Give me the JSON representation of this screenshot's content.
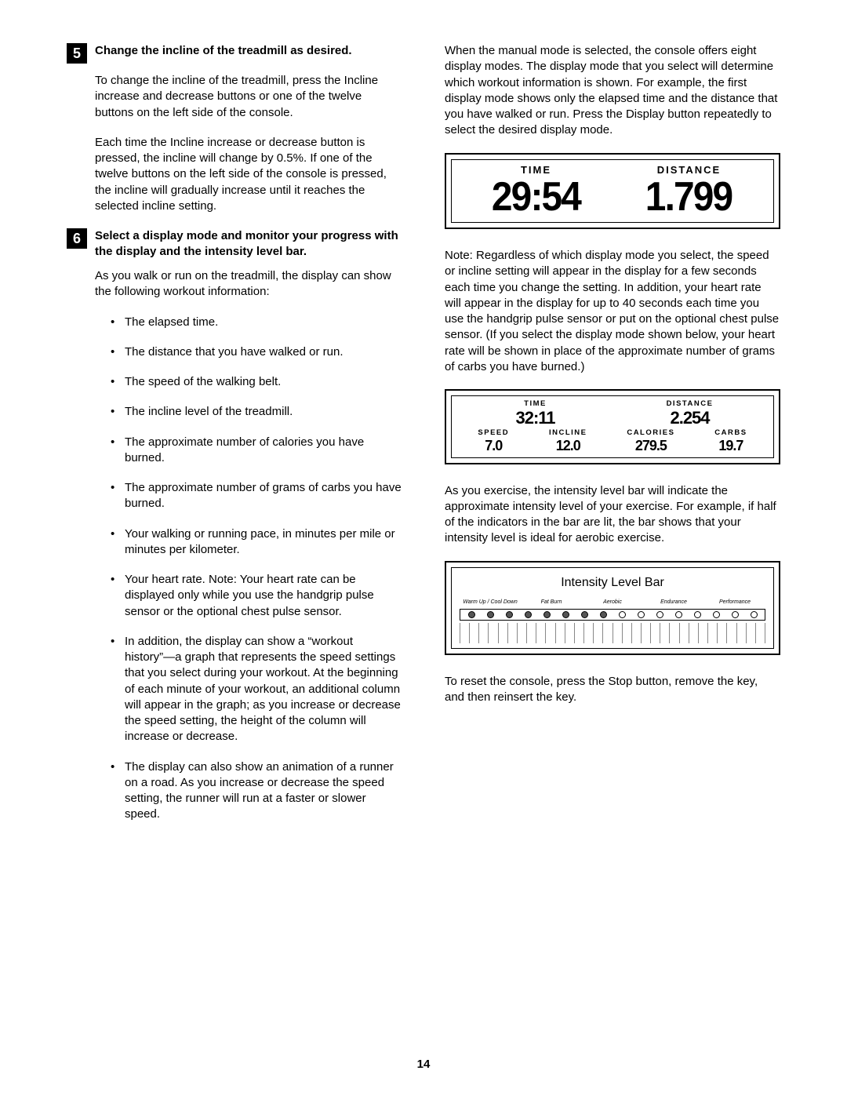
{
  "steps": {
    "s5": {
      "num": "5",
      "title": "Change the incline of the treadmill as desired."
    },
    "s6": {
      "num": "6",
      "title": "Select a display mode and monitor your progress with the display and the intensity level bar."
    }
  },
  "left": {
    "p5a": "To change the incline of the treadmill, press the Incline increase and decrease buttons or one of the twelve buttons on the left side of the console.",
    "p5b": "Each time the Incline increase or decrease button is pressed, the incline will change by 0.5%. If one of the twelve buttons on the left side of the console is pressed, the incline will gradually increase until it reaches the selected incline setting.",
    "p6a": "As you walk or run on the treadmill, the display can show the following workout information:",
    "b1": "The elapsed time.",
    "b2": "The distance that you have walked or run.",
    "b3": "The speed of the walking belt.",
    "b4": "The incline level of the treadmill.",
    "b5": "The approximate number of calories you have burned.",
    "b6": "The approximate number of grams of carbs you have burned.",
    "b7": "Your walking or running pace, in minutes per mile or minutes per kilometer.",
    "b8": "Your heart rate. Note: Your heart rate can be displayed only while you use the handgrip pulse sensor or the optional chest pulse sensor.",
    "b9": "In addition, the display can show a “workout history”—a graph that represents the speed settings that you select during your workout. At the beginning of each minute of your workout, an additional column will appear in the graph; as you increase or decrease the speed setting, the height of the column will increase or decrease.",
    "b10": "The display can also show an animation of a runner on a road. As you increase or decrease the speed setting, the runner will run at a faster or slower speed."
  },
  "right": {
    "p1": "When the manual mode is selected, the console offers eight display modes. The display mode that you select will determine which workout information is shown. For example, the first display mode shows only the elapsed time and the distance that you have walked or run. Press the Display button repeatedly to select the desired display mode.",
    "p2": "Note: Regardless of which display mode you select, the speed or incline setting will appear in the display for a few seconds each time you change the setting. In addition, your heart rate will appear in the display for up to 40 seconds each time you use the handgrip pulse sensor or put on the optional chest pulse sensor. (If you select the display mode shown below, your heart rate will be shown in place of the approximate number of grams of carbs you have burned.)",
    "p3": "As you exercise, the intensity level bar will indicate the approximate intensity level of your exercise. For example, if half of the indicators in the bar are lit, the bar shows that your intensity level is ideal for aerobic exercise.",
    "p4": "To reset the console, press the Stop button, remove the key, and then reinsert the key."
  },
  "lcd1": {
    "time_label": "TIME",
    "dist_label": "DISTANCE",
    "time_value": "29:54",
    "dist_value": "1.799"
  },
  "lcd2": {
    "time_label": "TIME",
    "time_value": "32:11",
    "dist_label": "DISTANCE",
    "dist_value": "2.254",
    "speed_label": "SPEED",
    "speed_value": "7.0",
    "incline_label": "INCLINE",
    "incline_value": "12.0",
    "calories_label": "CALORIES",
    "calories_value": "279.5",
    "carbs_label": "CARBS",
    "carbs_value": "19.7"
  },
  "ibar": {
    "title": "Intensity Level Bar",
    "zones": [
      "Warm Up / Cool Down",
      "Fat Burn",
      "Aerobic",
      "Endurance",
      "Performance"
    ],
    "led_count": 16,
    "leds_on": 8,
    "tick_count": 33
  },
  "page_number": "14"
}
